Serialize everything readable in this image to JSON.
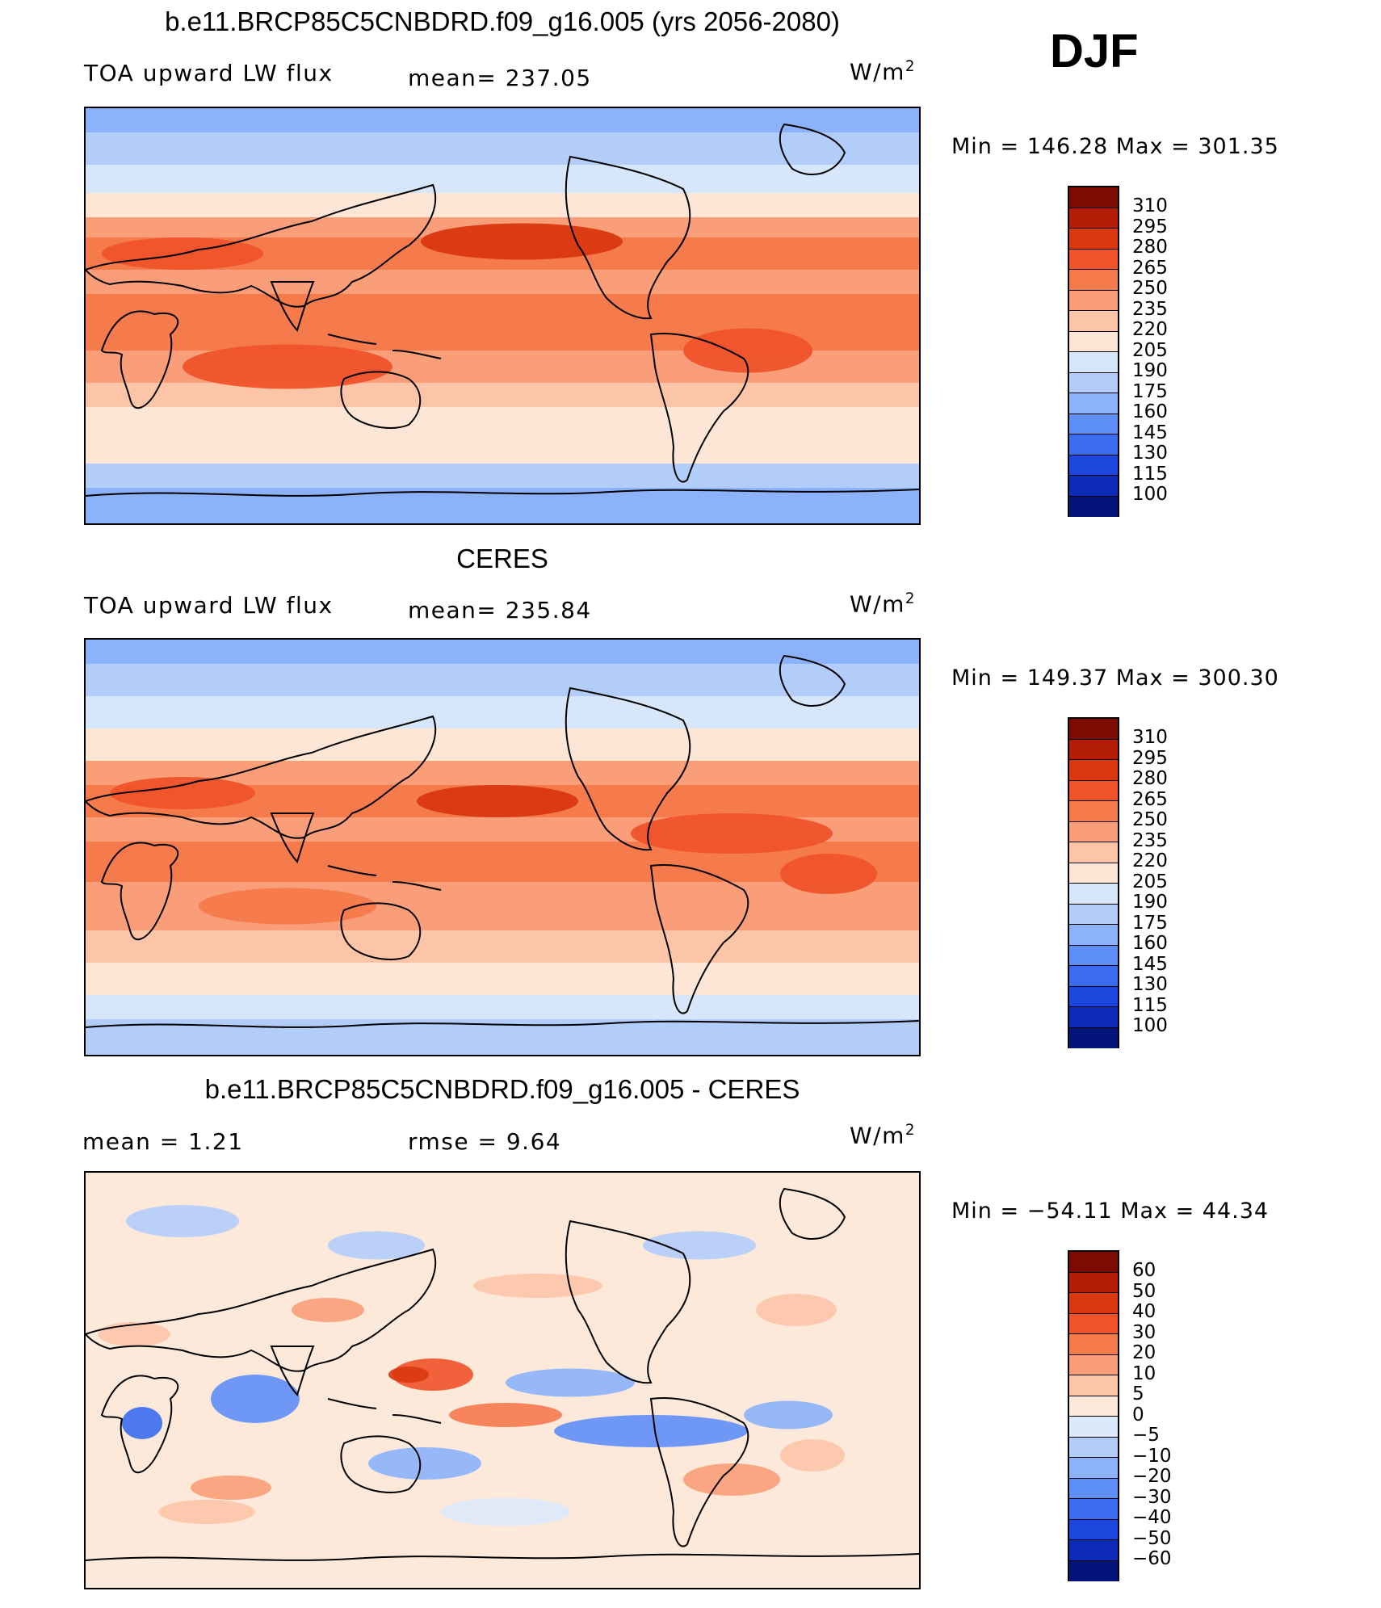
{
  "season": "DJF",
  "units": {
    "main": "W/m",
    "exp": "2"
  },
  "colors": {
    "warm": [
      "#fde9da",
      "#fcc9ac",
      "#fba27c",
      "#f77f52",
      "#f2582d",
      "#e23f16",
      "#c92a0c",
      "#a31806",
      "#7a0a03"
    ],
    "cool": [
      "#dbe9fb",
      "#bcd3fb",
      "#97bbfb",
      "#6a97fb",
      "#3f73f6",
      "#1e51e8",
      "#0e33c9",
      "#061d9c",
      "#020c73"
    ],
    "neutral": "#fdf0e6"
  },
  "panels": [
    {
      "title": "b.e11.BRCP85C5CNBDRD.f09_g16.005 (yrs 2056-2080)",
      "left_text": "TOA upward LW flux",
      "center_text": "mean= 237.05",
      "min_text": "Min  =  146.28  Max  =  301.35",
      "levels": [
        "310",
        "295",
        "280",
        "265",
        "250",
        "235",
        "220",
        "205",
        "190",
        "175",
        "160",
        "145",
        "130",
        "115",
        "100"
      ],
      "palette": [
        "#7b0b03",
        "#b31d07",
        "#d9370f",
        "#f0532a",
        "#f57a4c",
        "#f99e78",
        "#fcc5a8",
        "#fde6d5",
        "#d6e6fb",
        "#b3cdfb",
        "#8bb2fb",
        "#5e8ef8",
        "#3b6cf0",
        "#1c47dc",
        "#0b2bb8",
        "#03157c"
      ],
      "map_kind": "model"
    },
    {
      "title": "CERES",
      "left_text": "TOA upward LW flux",
      "center_text": "mean= 235.84",
      "min_text": "Min  =  149.37  Max  =  300.30",
      "levels": [
        "310",
        "295",
        "280",
        "265",
        "250",
        "235",
        "220",
        "205",
        "190",
        "175",
        "160",
        "145",
        "130",
        "115",
        "100"
      ],
      "palette": [
        "#7b0b03",
        "#b31d07",
        "#d9370f",
        "#f0532a",
        "#f57a4c",
        "#f99e78",
        "#fcc5a8",
        "#fde6d5",
        "#d6e6fb",
        "#b3cdfb",
        "#8bb2fb",
        "#5e8ef8",
        "#3b6cf0",
        "#1c47dc",
        "#0b2bb8",
        "#03157c"
      ],
      "map_kind": "obs"
    },
    {
      "title": "b.e11.BRCP85C5CNBDRD.f09_g16.005 - CERES",
      "left_text": "mean =     1.21",
      "center_text": "rmse =     9.64",
      "min_text": "Min  =  −54.11  Max  =    44.34",
      "levels": [
        "60",
        "50",
        "40",
        "30",
        "20",
        "10",
        "5",
        "0",
        "−5",
        "−10",
        "−20",
        "−30",
        "−40",
        "−50",
        "−60"
      ],
      "palette": [
        "#7b0b03",
        "#b31d07",
        "#d9370f",
        "#f0532a",
        "#f57a4c",
        "#f99e78",
        "#fcc5a8",
        "#fde9da",
        "#dbe9fb",
        "#b3cdfb",
        "#8bb2fb",
        "#5e8ef8",
        "#3b6cf0",
        "#1c47dc",
        "#0b2bb8",
        "#03157c"
      ],
      "map_kind": "diff"
    }
  ]
}
